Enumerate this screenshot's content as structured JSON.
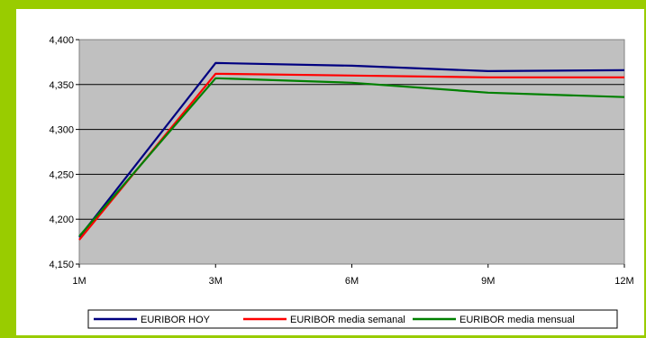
{
  "chart_data": {
    "type": "line",
    "title": "",
    "xlabel": "",
    "ylabel": "",
    "categories": [
      "1M",
      "3M",
      "6M",
      "9M",
      "12M"
    ],
    "ylim": [
      4.15,
      4.4
    ],
    "yticks": [
      "4,400",
      "4,350",
      "4,300",
      "4,250",
      "4,200",
      "4,150"
    ],
    "ytick_values": [
      4.4,
      4.35,
      4.3,
      4.25,
      4.2,
      4.15
    ],
    "grid": "horizontal",
    "plot_background": "#c0c0c0",
    "legend_position": "bottom",
    "series": [
      {
        "name": "EURIBOR HOY",
        "color": "#000080",
        "values": [
          4.18,
          4.374,
          4.371,
          4.365,
          4.366
        ]
      },
      {
        "name": "EURIBOR media semanal",
        "color": "#ff0000",
        "values": [
          4.177,
          4.362,
          4.36,
          4.358,
          4.358
        ]
      },
      {
        "name": "EURIBOR media mensual",
        "color": "#008000",
        "values": [
          4.181,
          4.357,
          4.352,
          4.341,
          4.336
        ]
      }
    ]
  }
}
